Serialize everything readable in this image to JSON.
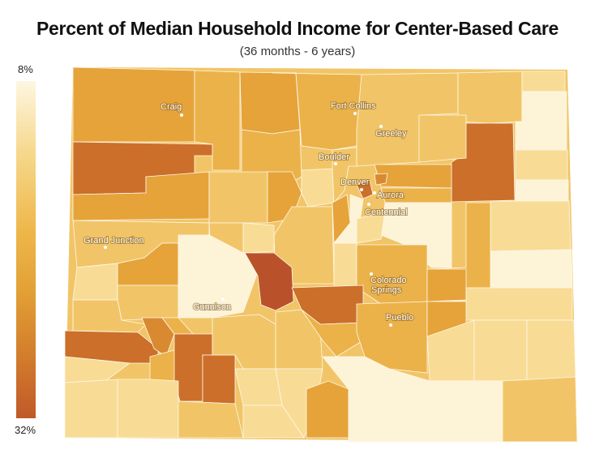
{
  "title": "Percent of Median Household Income for Center-Based Care",
  "subtitle": "(36 months - 6 years)",
  "legend": {
    "max_label": "8%",
    "min_label": "32%"
  },
  "colors": {
    "c1": "#fdf3d6",
    "c2": "#f8dc95",
    "c3": "#f1c567",
    "c4": "#ebb24a",
    "c5": "#e5a33a",
    "c6": "#d98a30",
    "c7": "#cb6f2b",
    "c8": "#b9522a"
  },
  "cities": [
    {
      "name": "Craig"
    },
    {
      "name": "Fort Collins"
    },
    {
      "name": "Greeley"
    },
    {
      "name": "Boulder"
    },
    {
      "name": "Denver"
    },
    {
      "name": "Aurora"
    },
    {
      "name": "Centennial"
    },
    {
      "name": "Grand Junction"
    },
    {
      "name": "Gunnison"
    },
    {
      "name": "Colorado Springs"
    },
    {
      "name": "Pueblo"
    }
  ]
}
